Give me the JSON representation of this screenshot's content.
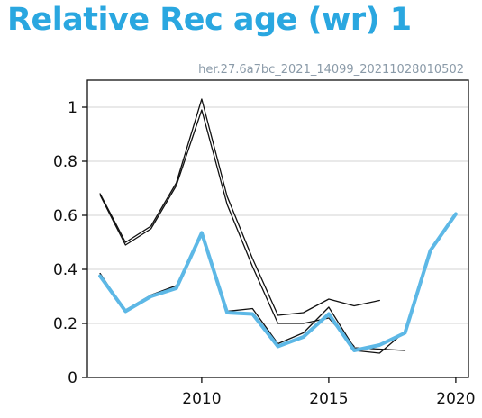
{
  "header": {
    "title": "Relative Rec age (wr) 1"
  },
  "colors": {
    "title": "#2aa7e0",
    "accent": "#5db8e6",
    "line": "#111111",
    "grid": "#d3d3d3"
  },
  "chart_data": {
    "type": "line",
    "title": "Relative Rec age (wr) 1",
    "subtitle": "her.27.6a7bc_2021_14099_20211028010502",
    "xlabel": "",
    "ylabel": "",
    "xlim": [
      2005.5,
      2020.5
    ],
    "ylim": [
      0,
      1.1
    ],
    "xticks": [
      2010,
      2015,
      2020
    ],
    "yticks": [
      0,
      0.2,
      0.4,
      0.6,
      0.8,
      1
    ],
    "ytick_labels": [
      "0",
      "0.2",
      "0.4",
      "0.6",
      "0.8",
      "1"
    ],
    "grid": "horizontal",
    "legend": "none",
    "series": [
      {
        "color": "#111111",
        "width": 1.3,
        "x": [
          2006,
          2007,
          2008,
          2009,
          2010,
          2011,
          2012,
          2013,
          2014,
          2015,
          2016,
          2017
        ],
        "y": [
          0.68,
          0.5,
          0.56,
          0.72,
          1.03,
          0.67,
          0.44,
          0.23,
          0.24,
          0.29,
          0.265,
          0.285
        ]
      },
      {
        "color": "#111111",
        "width": 1.3,
        "x": [
          2006,
          2007,
          2008,
          2009,
          2010,
          2011,
          2012,
          2013,
          2014,
          2015,
          2016
        ],
        "y": [
          0.675,
          0.49,
          0.55,
          0.71,
          0.99,
          0.64,
          0.41,
          0.2,
          0.2,
          0.22,
          0.115
        ]
      },
      {
        "color": "#111111",
        "width": 1.3,
        "x": [
          2006,
          2007,
          2008,
          2009,
          2010,
          2011,
          2012,
          2013,
          2014,
          2015,
          2016,
          2017,
          2018
        ],
        "y": [
          0.38,
          0.25,
          0.305,
          0.34,
          0.535,
          0.245,
          0.255,
          0.125,
          0.165,
          0.26,
          0.11,
          0.105,
          0.1
        ]
      },
      {
        "color": "#111111",
        "width": 1.3,
        "x": [
          2006,
          2007,
          2008,
          2009,
          2010,
          2011,
          2012,
          2013,
          2014,
          2015,
          2016,
          2017,
          2018
        ],
        "y": [
          0.385,
          0.245,
          0.3,
          0.33,
          0.53,
          0.24,
          0.235,
          0.115,
          0.15,
          0.235,
          0.1,
          0.09,
          0.17
        ]
      },
      {
        "color": "#5db8e6",
        "width": 4,
        "x": [
          2006,
          2007,
          2008,
          2009,
          2010,
          2011,
          2012,
          2013,
          2014,
          2015,
          2016,
          2017,
          2018,
          2019,
          2020
        ],
        "y": [
          0.375,
          0.245,
          0.3,
          0.33,
          0.535,
          0.24,
          0.235,
          0.115,
          0.15,
          0.235,
          0.1,
          0.12,
          0.165,
          0.47,
          0.605
        ]
      }
    ]
  }
}
